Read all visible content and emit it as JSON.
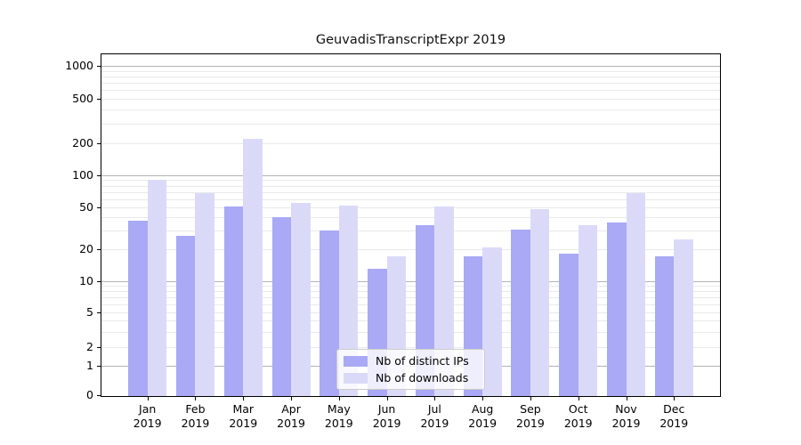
{
  "chart_data": {
    "type": "bar",
    "title": "GeuvadisTranscriptExpr 2019",
    "categories": [
      "Jan",
      "Feb",
      "Mar",
      "Apr",
      "May",
      "Jun",
      "Jul",
      "Aug",
      "Sep",
      "Oct",
      "Nov",
      "Dec"
    ],
    "x_tick_year": "2019",
    "series": [
      {
        "name": "Nb of distinct IPs",
        "color": "#a9a9f5",
        "values": [
          37,
          27,
          51,
          40,
          30,
          13,
          34,
          17,
          31,
          18,
          36,
          17
        ]
      },
      {
        "name": "Nb of downloads",
        "color": "#dadaf8",
        "values": [
          91,
          68,
          220,
          55,
          52,
          17,
          51,
          21,
          48,
          34,
          68,
          25
        ]
      }
    ],
    "yscale": "symlog",
    "y_ticks": [
      0,
      1,
      2,
      5,
      10,
      20,
      50,
      100,
      200,
      500,
      1000
    ],
    "y_tick_labels": [
      "0",
      "1",
      "2",
      "5",
      "10",
      "20",
      "50",
      "100",
      "200",
      "500",
      "1000"
    ],
    "ylim": [
      0,
      1200
    ],
    "grid": "horizontal, major and minor",
    "legend_position": "lower center"
  },
  "colors": {
    "background": "#ffffff",
    "axis": "#000000",
    "major_gridline": "#b3b3b3",
    "minor_gridline": "#e9e9e9",
    "legend_border": "#cccccc"
  }
}
